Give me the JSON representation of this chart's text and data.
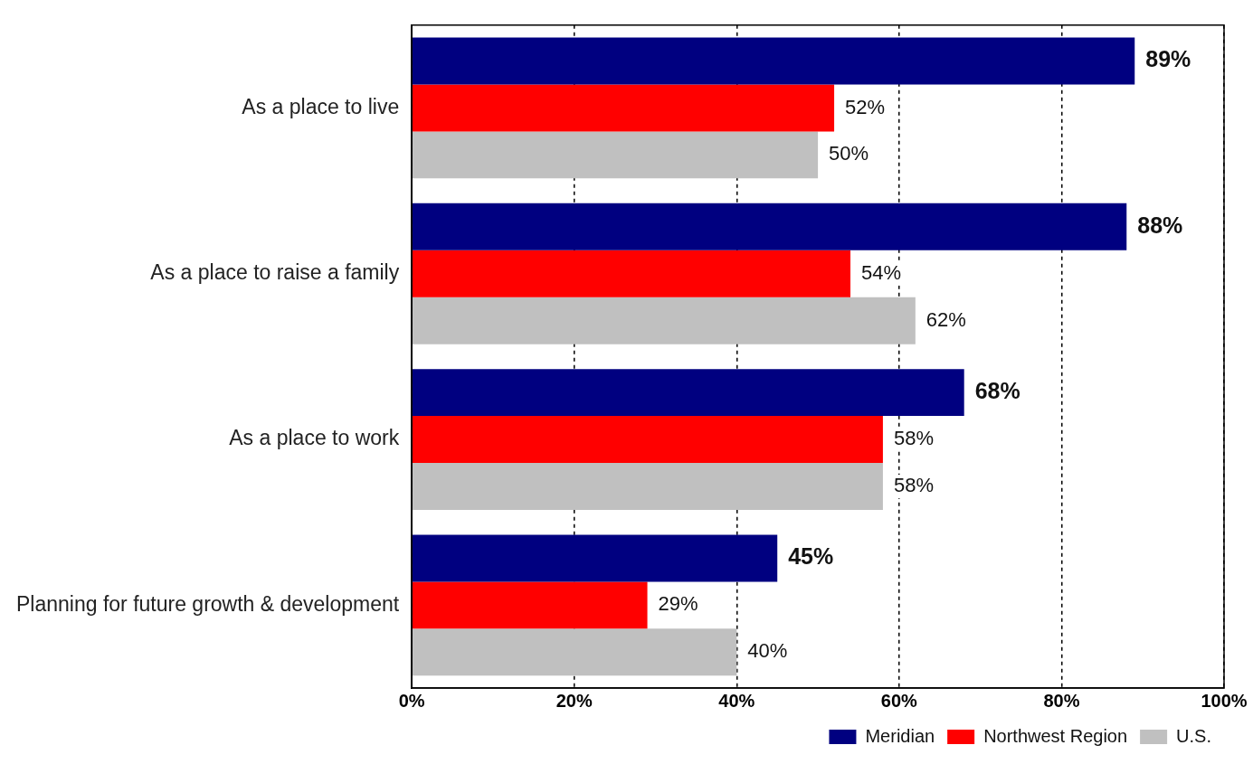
{
  "chart_data": {
    "type": "bar",
    "orientation": "horizontal",
    "categories": [
      "As a place to live",
      "As a place to raise a family",
      "As a place to work",
      "Planning for future growth & development"
    ],
    "series": [
      {
        "name": "Meridian",
        "color": "#000080",
        "values": [
          89,
          88,
          68,
          45
        ],
        "value_labels": [
          "89%",
          "88%",
          "68%",
          "45%"
        ]
      },
      {
        "name": "Northwest Region",
        "color": "#ff0000",
        "values": [
          52,
          54,
          58,
          29
        ],
        "value_labels": [
          "52%",
          "54%",
          "58%",
          "29%"
        ]
      },
      {
        "name": "U.S.",
        "color": "#c0c0c0",
        "values": [
          50,
          62,
          58,
          40
        ],
        "value_labels": [
          "50%",
          "62%",
          "58%",
          "40%"
        ]
      }
    ],
    "xlim": [
      0,
      100
    ],
    "xticks": [
      {
        "value": 0,
        "label": "0%"
      },
      {
        "value": 20,
        "label": "20%"
      },
      {
        "value": 40,
        "label": "40%"
      },
      {
        "value": 60,
        "label": "60%"
      },
      {
        "value": 80,
        "label": "80%"
      },
      {
        "value": 100,
        "label": "100%"
      }
    ],
    "grid": "x",
    "legend": "bottom right"
  }
}
